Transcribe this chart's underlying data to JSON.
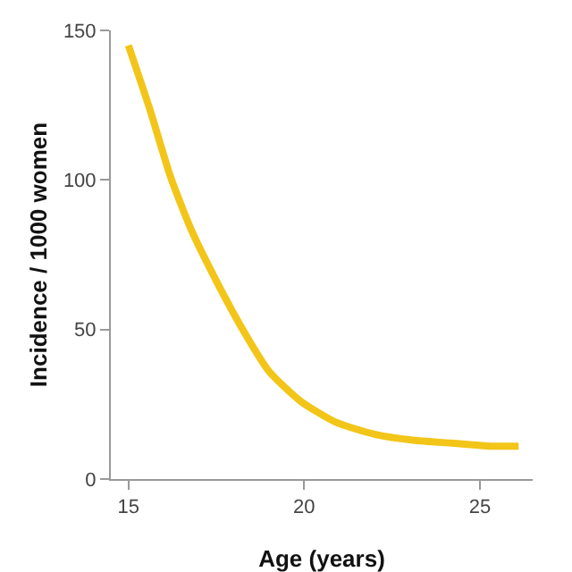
{
  "chart_data": {
    "type": "line",
    "xlabel": "Age (years)",
    "ylabel": "Incidence / 1000 women",
    "x": [
      15,
      15.6,
      16.2,
      16.8,
      17.6,
      18.3,
      19,
      19.9,
      20.9,
      22,
      23.1,
      24.2,
      25.3,
      26.1
    ],
    "series": [
      {
        "color": "#f2c518",
        "values": [
          145,
          124,
          101,
          83,
          64,
          49,
          36,
          26,
          19,
          15,
          13,
          12,
          11,
          11
        ]
      }
    ],
    "xlim": [
      14.5,
      26.5
    ],
    "ylim": [
      0,
      150
    ],
    "xticks": [
      15,
      20,
      25
    ],
    "yticks": [
      0,
      50,
      100,
      150
    ],
    "grid": false,
    "legend": false,
    "marker": "none",
    "line_style": "solid"
  }
}
